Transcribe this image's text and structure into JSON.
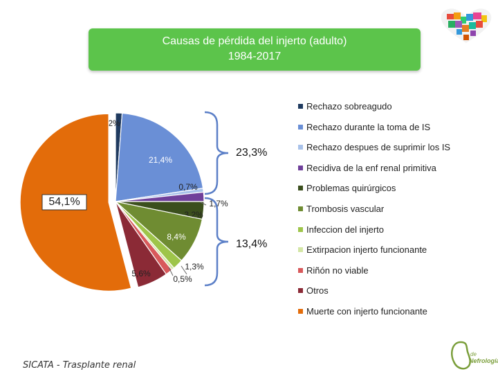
{
  "chart_data": {
    "type": "pie",
    "title": "Causas de pérdida del injerto (adulto)",
    "subtitle": "1984-2017",
    "slices": [
      {
        "name": "Rechazo sobreagudo",
        "value": 1.2,
        "label": "1,2%",
        "color": "#1f3a5f"
      },
      {
        "name": "Rechazo durante la toma de IS",
        "value": 21.4,
        "label": "21,4%",
        "color": "#6a8fd6"
      },
      {
        "name": "Rechazo despues de suprimir los IS",
        "value": 0.7,
        "label": "0,7%",
        "color": "#a9c2ea"
      },
      {
        "name": "Recidiva de la enf renal primitiva",
        "value": 1.7,
        "label": "1,7%",
        "color": "#6f3f9a"
      },
      {
        "name": "Problemas quirúrgicos",
        "value": 3.2,
        "label": "3,2%",
        "color": "#3b4f1d"
      },
      {
        "name": "Trombosis vascular",
        "value": 8.4,
        "label": "8,4%",
        "color": "#6f8c32"
      },
      {
        "name": "Infeccion del injerto",
        "value": 1.9,
        "label": "1,9%",
        "color": "#9ec54a"
      },
      {
        "name": "Extirpacion injerto funcionante",
        "value": 0.5,
        "label": "0,5%",
        "color": "#d3e6a5"
      },
      {
        "name": "Riñón no viable",
        "value": 1.3,
        "label": "1,3%",
        "color": "#d8595b"
      },
      {
        "name": "Otros",
        "value": 5.6,
        "label": "5,6%",
        "color": "#8b2a36"
      },
      {
        "name": "Muerte con injerto funcionante",
        "value": 54.1,
        "label": "54,1%",
        "color": "#e36c0a"
      }
    ],
    "annotations": {
      "rechazo_total": "23,3%",
      "middle_group_total": "13,4%"
    },
    "legend_position": "right"
  },
  "footer": "SICATA - Trasplante renal"
}
